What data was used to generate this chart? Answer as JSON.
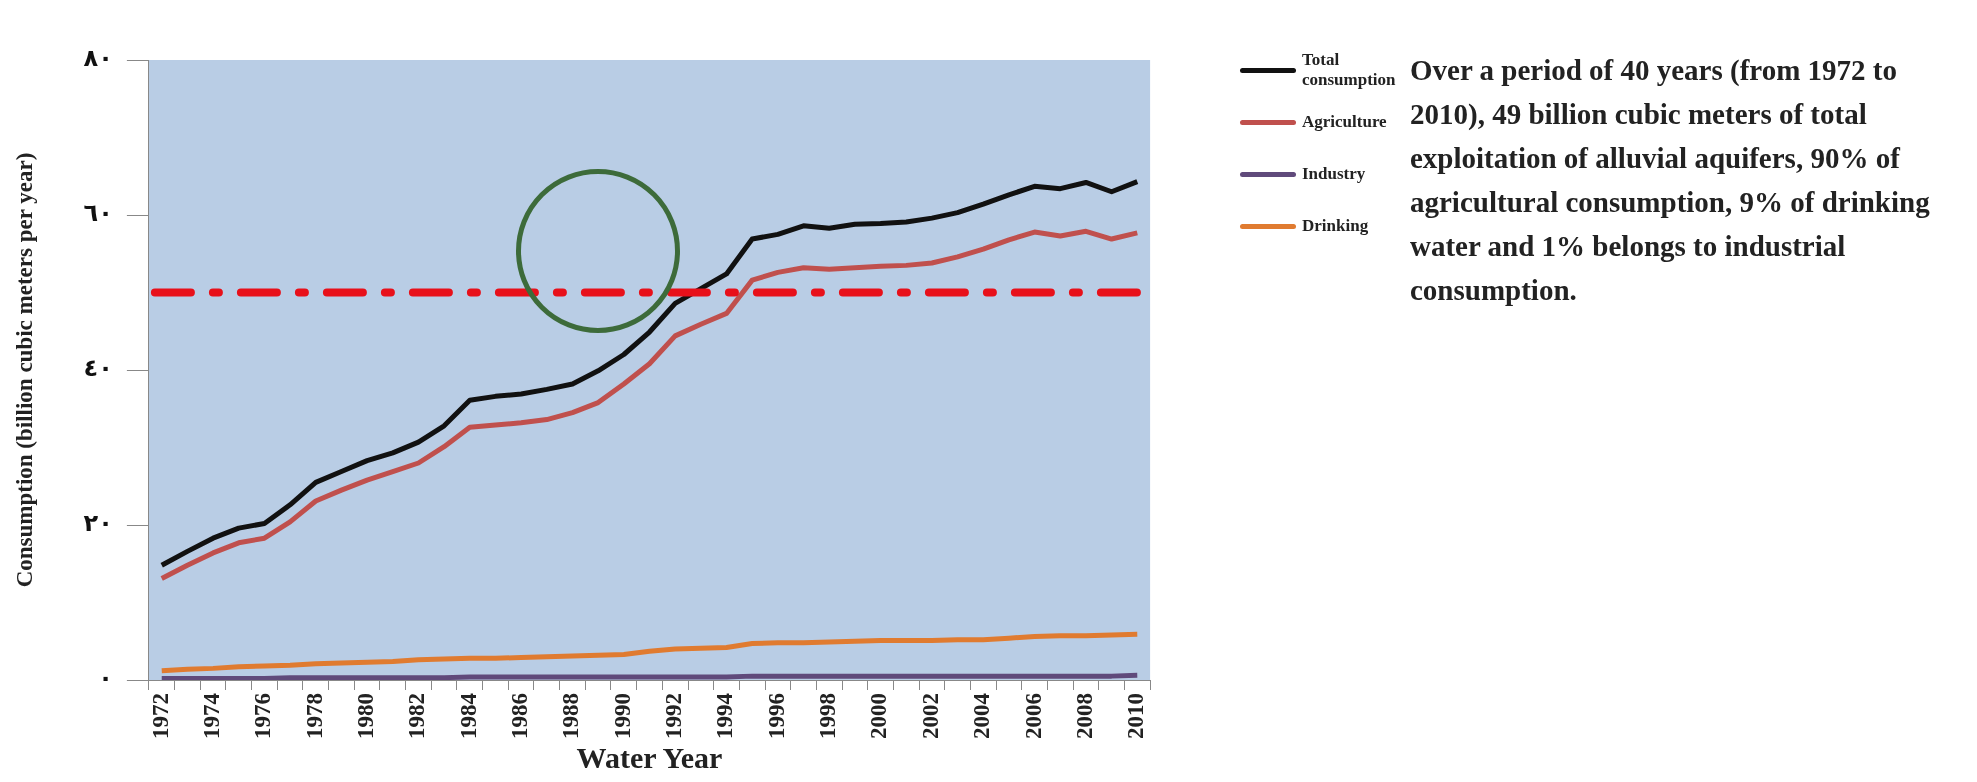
{
  "chart_data": {
    "type": "line",
    "xlabel": "Water Year",
    "ylabel": "Consumption (billion cubic meters per year)",
    "categories": [
      "1972",
      null,
      "1974",
      null,
      "1976",
      null,
      "1978",
      null,
      "1980",
      null,
      "1982",
      null,
      "1984",
      null,
      "1986",
      null,
      "1988",
      null,
      "1990",
      null,
      "1992",
      null,
      "1994",
      null,
      "1996",
      null,
      "1998",
      null,
      "2000",
      null,
      "2002",
      null,
      "2004",
      null,
      "2006",
      null,
      "2008",
      null,
      "2010"
    ],
    "series": [
      {
        "name": "Total consumption",
        "color": "#111111",
        "values": [
          14.8,
          16.6,
          18.3,
          19.6,
          20.2,
          22.6,
          25.5,
          26.9,
          28.3,
          29.3,
          30.7,
          32.8,
          36.1,
          36.6,
          36.9,
          37.5,
          38.2,
          39.9,
          42.0,
          44.9,
          48.6,
          50.5,
          52.4,
          56.9,
          57.5,
          58.6,
          58.3,
          58.8,
          58.9,
          59.1,
          59.6,
          60.3,
          61.4,
          62.6,
          63.7,
          63.4,
          64.2,
          63.0,
          64.3
        ]
      },
      {
        "name": "Agriculture",
        "color": "#c0504d",
        "values": [
          13.1,
          14.8,
          16.4,
          17.7,
          18.3,
          20.4,
          23.1,
          24.5,
          25.8,
          26.9,
          28.0,
          30.1,
          32.6,
          32.9,
          33.2,
          33.6,
          34.5,
          35.8,
          38.2,
          40.8,
          44.4,
          45.9,
          47.3,
          51.6,
          52.6,
          53.2,
          53.0,
          53.2,
          53.4,
          53.5,
          53.8,
          54.6,
          55.6,
          56.8,
          57.8,
          57.3,
          57.9,
          56.9,
          57.7
        ]
      },
      {
        "name": "Industry",
        "color": "#604a7b",
        "values": [
          0.2,
          0.2,
          0.2,
          0.2,
          0.2,
          0.3,
          0.3,
          0.3,
          0.3,
          0.3,
          0.3,
          0.3,
          0.4,
          0.4,
          0.4,
          0.4,
          0.4,
          0.4,
          0.4,
          0.4,
          0.4,
          0.4,
          0.4,
          0.5,
          0.5,
          0.5,
          0.5,
          0.5,
          0.5,
          0.5,
          0.5,
          0.5,
          0.5,
          0.5,
          0.5,
          0.5,
          0.5,
          0.5,
          0.6
        ]
      },
      {
        "name": "Drinking",
        "color": "#e07b30",
        "values": [
          1.2,
          1.4,
          1.5,
          1.7,
          1.8,
          1.9,
          2.1,
          2.2,
          2.3,
          2.4,
          2.6,
          2.7,
          2.8,
          2.8,
          2.9,
          3.0,
          3.1,
          3.2,
          3.3,
          3.7,
          4.0,
          4.1,
          4.2,
          4.7,
          4.8,
          4.8,
          4.9,
          5.0,
          5.1,
          5.1,
          5.1,
          5.2,
          5.2,
          5.4,
          5.6,
          5.7,
          5.7,
          5.8,
          5.9
        ]
      }
    ],
    "ylim": [
      0,
      80
    ],
    "yticks": [
      {
        "value": 0,
        "label": "٠"
      },
      {
        "value": 20,
        "label": "٢٠"
      },
      {
        "value": 40,
        "label": "٤٠"
      },
      {
        "value": 60,
        "label": "٦٠"
      },
      {
        "value": 80,
        "label": "٨٠"
      }
    ],
    "ref_lines": [
      {
        "axis": "y",
        "value": 50,
        "color": "#e8101a",
        "line_style": "dashed"
      }
    ],
    "annotations": [
      "Over a period of 40 years (from 1972 to 2010), 49 billion cubic meters of total exploitation of alluvial aquifers, 90% of agricultural consumption, 9% of drinking water and 1% belongs to industrial consumption."
    ],
    "legend": "right",
    "grid": false,
    "marker": "none",
    "line_style": "solid"
  }
}
